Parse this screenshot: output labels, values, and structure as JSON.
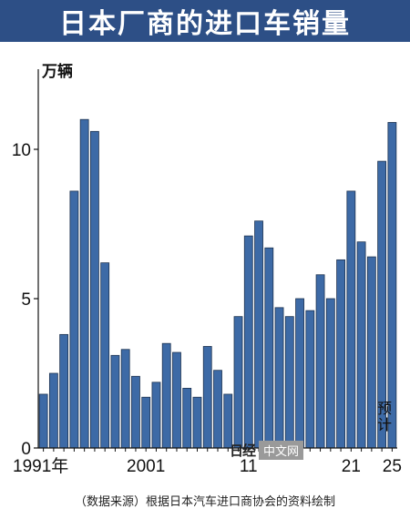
{
  "header": {
    "title": "日本厂商的进口车销量"
  },
  "chart_data": {
    "type": "bar",
    "title": "日本厂商的进口车销量",
    "ylabel": "万辆",
    "ylim": [
      0,
      10
    ],
    "yticks": [
      0,
      5,
      10
    ],
    "xtick_labels": [
      {
        "year": 1991,
        "label": "1991年"
      },
      {
        "year": 2001,
        "label": "2001"
      },
      {
        "year": 2011,
        "label": "11"
      },
      {
        "year": 2021,
        "label": "21"
      },
      {
        "year": 2025,
        "label": "25"
      }
    ],
    "x": [
      1991,
      1992,
      1993,
      1994,
      1995,
      1996,
      1997,
      1998,
      1999,
      2000,
      2001,
      2002,
      2003,
      2004,
      2005,
      2006,
      2007,
      2008,
      2009,
      2010,
      2011,
      2012,
      2013,
      2014,
      2015,
      2016,
      2017,
      2018,
      2019,
      2020,
      2021,
      2022,
      2023,
      2024,
      2025
    ],
    "values": [
      1.8,
      2.5,
      3.8,
      8.6,
      11.0,
      10.6,
      6.2,
      3.1,
      3.3,
      2.4,
      1.7,
      2.2,
      3.5,
      3.2,
      2.0,
      1.7,
      3.4,
      2.6,
      1.8,
      4.4,
      7.1,
      7.6,
      6.7,
      4.7,
      4.4,
      5.0,
      4.6,
      5.8,
      5.0,
      6.3,
      8.6,
      6.9,
      6.4,
      9.6,
      10.9
    ],
    "annotation": "预计",
    "bar_color": "#3d6aa6",
    "bar_edge_color": "#1e3350",
    "grid": false
  },
  "watermark": {
    "logo": "日经",
    "text": "中文网"
  },
  "source": "（数据来源）根据日本汽车进口商协会的资料绘制"
}
